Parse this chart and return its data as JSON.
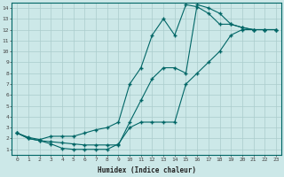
{
  "title": "",
  "xlabel": "Humidex (Indice chaleur)",
  "ylabel": "",
  "bg_color": "#cce8e8",
  "line_color": "#006666",
  "grid_color": "#aacccc",
  "xlim": [
    -0.5,
    23.5
  ],
  "ylim": [
    0.5,
    14.5
  ],
  "xticks": [
    0,
    1,
    2,
    3,
    4,
    5,
    6,
    7,
    8,
    9,
    10,
    11,
    12,
    13,
    14,
    15,
    16,
    17,
    18,
    19,
    20,
    21,
    22,
    23
  ],
  "yticks": [
    1,
    2,
    3,
    4,
    5,
    6,
    7,
    8,
    9,
    10,
    11,
    12,
    13,
    14
  ],
  "curve1_x": [
    0,
    1,
    2,
    3,
    4,
    5,
    6,
    7,
    8,
    9,
    10,
    11,
    12,
    13,
    14,
    15,
    16,
    17,
    18,
    19,
    20,
    21,
    22,
    23
  ],
  "curve1_y": [
    2.5,
    2.1,
    1.9,
    2.2,
    2.2,
    2.2,
    2.5,
    2.8,
    3.0,
    3.5,
    7.0,
    8.5,
    11.5,
    13.0,
    11.5,
    14.3,
    14.1,
    13.5,
    12.5,
    12.5,
    12.2,
    12.0,
    12.0,
    12.0
  ],
  "curve2_x": [
    0,
    1,
    2,
    3,
    4,
    5,
    6,
    7,
    8,
    9,
    10,
    11,
    12,
    13,
    14,
    15,
    16,
    17,
    18,
    19,
    20,
    21,
    22,
    23
  ],
  "curve2_y": [
    2.5,
    2.0,
    1.8,
    1.7,
    1.6,
    1.5,
    1.4,
    1.4,
    1.4,
    1.4,
    3.5,
    5.5,
    7.5,
    8.5,
    8.5,
    8.0,
    14.3,
    14.0,
    13.5,
    12.5,
    12.2,
    12.0,
    12.0,
    12.0
  ],
  "curve3_x": [
    0,
    1,
    2,
    3,
    4,
    5,
    6,
    7,
    8,
    9,
    10,
    11,
    12,
    13,
    14,
    15,
    16,
    17,
    18,
    19,
    20,
    21,
    22,
    23
  ],
  "curve3_y": [
    2.5,
    2.0,
    1.8,
    1.5,
    1.1,
    1.0,
    1.0,
    1.0,
    1.0,
    1.5,
    3.0,
    3.5,
    3.5,
    3.5,
    3.5,
    7.0,
    8.0,
    9.0,
    10.0,
    11.5,
    12.0,
    12.0,
    12.0,
    12.0
  ]
}
